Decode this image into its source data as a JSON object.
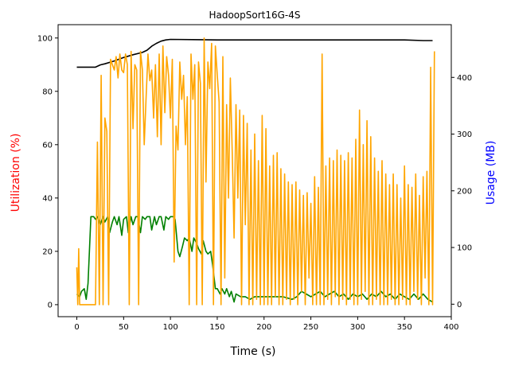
{
  "chart_data": {
    "type": "line",
    "title": "HadoopSort16G-4S",
    "xlabel": "Time (s)",
    "ylabel_left": "Utilization (%)",
    "ylabel_right": "Usage (MB)",
    "colors": {
      "ylabel_left": "#ff0000",
      "ylabel_right": "#0000ff"
    },
    "xlim": [
      -20,
      400
    ],
    "ylim_left": [
      -4.5,
      105
    ],
    "ylim_right": [
      -22,
      493
    ],
    "xticks": [
      "0",
      "50",
      "100",
      "150",
      "200",
      "250",
      "300",
      "350",
      "400"
    ],
    "yticks_left": [
      "0",
      "20",
      "40",
      "60",
      "80",
      "100"
    ],
    "yticks_right": [
      "0",
      "100",
      "200",
      "300",
      "400"
    ],
    "grid": false,
    "series": [
      {
        "axis": "right",
        "color": "#000000",
        "x": [
          0,
          20,
          25,
          30,
          40,
          50,
          60,
          70,
          75,
          80,
          85,
          90,
          95,
          100,
          150,
          200,
          250,
          300,
          350,
          370,
          380
        ],
        "y": [
          418,
          418,
          422,
          424,
          429,
          435,
          440,
          444,
          448,
          455,
          460,
          464,
          466,
          467,
          466,
          466,
          466,
          466,
          466,
          465,
          465
        ]
      },
      {
        "axis": "left",
        "color": "#008000",
        "x": [
          0,
          3,
          5,
          8,
          10,
          12,
          15,
          18,
          20,
          22,
          25,
          28,
          30,
          33,
          35,
          38,
          40,
          43,
          45,
          48,
          50,
          53,
          55,
          58,
          60,
          63,
          65,
          68,
          70,
          73,
          75,
          78,
          80,
          83,
          85,
          88,
          90,
          93,
          95,
          98,
          100,
          103,
          105,
          108,
          110,
          113,
          115,
          118,
          120,
          123,
          125,
          128,
          130,
          133,
          135,
          138,
          140,
          143,
          145,
          148,
          150,
          153,
          155,
          158,
          160,
          163,
          165,
          168,
          170,
          175,
          180,
          185,
          190,
          200,
          210,
          220,
          230,
          235,
          240,
          245,
          250,
          255,
          260,
          265,
          270,
          275,
          280,
          285,
          290,
          295,
          300,
          305,
          310,
          315,
          320,
          325,
          330,
          335,
          340,
          345,
          350,
          355,
          360,
          365,
          370,
          375,
          380
        ],
        "y": [
          4,
          3,
          5,
          6,
          2,
          8,
          33,
          33,
          32,
          33,
          30,
          33,
          31,
          33,
          27,
          31,
          33,
          30,
          33,
          26,
          32,
          33,
          27,
          33,
          30,
          33,
          33,
          27,
          33,
          32,
          33,
          33,
          28,
          33,
          30,
          33,
          33,
          28,
          33,
          32,
          33,
          33,
          32,
          20,
          18,
          22,
          25,
          24,
          25,
          20,
          25,
          23,
          21,
          19,
          24,
          20,
          19,
          20,
          15,
          6,
          6,
          4,
          6,
          4,
          6,
          3,
          5,
          1,
          4,
          3,
          3,
          2,
          3,
          3,
          3,
          3,
          2,
          3,
          5,
          4,
          3,
          4,
          5,
          3,
          4,
          5,
          3,
          4,
          2,
          4,
          3,
          4,
          2,
          4,
          3,
          5,
          3,
          4,
          2,
          4,
          3,
          2,
          4,
          2,
          4,
          2,
          1
        ]
      },
      {
        "axis": "left",
        "color": "#ffa500",
        "x": [
          0,
          1,
          2,
          3,
          5,
          8,
          12,
          16,
          20,
          22,
          24,
          26,
          28,
          30,
          32,
          34,
          36,
          38,
          40,
          42,
          44,
          46,
          48,
          50,
          52,
          54,
          56,
          58,
          60,
          62,
          64,
          66,
          68,
          70,
          72,
          74,
          76,
          78,
          80,
          82,
          84,
          86,
          88,
          90,
          92,
          94,
          96,
          98,
          100,
          102,
          104,
          106,
          108,
          110,
          112,
          114,
          116,
          118,
          120,
          122,
          124,
          126,
          128,
          130,
          132,
          134,
          136,
          138,
          140,
          142,
          144,
          146,
          148,
          150,
          152,
          154,
          156,
          158,
          160,
          162,
          164,
          166,
          168,
          170,
          172,
          174,
          176,
          178,
          180,
          182,
          184,
          186,
          188,
          190,
          192,
          194,
          196,
          198,
          200,
          202,
          204,
          206,
          208,
          210,
          212,
          214,
          216,
          218,
          220,
          222,
          224,
          226,
          228,
          230,
          232,
          234,
          236,
          238,
          240,
          242,
          244,
          246,
          248,
          250,
          252,
          254,
          256,
          258,
          260,
          262,
          264,
          266,
          268,
          270,
          272,
          274,
          276,
          278,
          280,
          282,
          284,
          286,
          288,
          290,
          292,
          294,
          296,
          298,
          300,
          302,
          304,
          306,
          308,
          310,
          312,
          314,
          316,
          318,
          320,
          322,
          324,
          326,
          328,
          330,
          332,
          334,
          336,
          338,
          340,
          342,
          344,
          346,
          348,
          350,
          352,
          354,
          356,
          358,
          360,
          362,
          364,
          366,
          368,
          370,
          372,
          374,
          376,
          378,
          380,
          382
        ],
        "y": [
          14,
          0,
          21,
          0,
          0,
          0,
          0,
          0,
          0,
          61,
          0,
          86,
          0,
          70,
          65,
          0,
          92,
          90,
          88,
          93,
          85,
          94,
          88,
          87,
          94,
          90,
          0,
          95,
          66,
          90,
          88,
          0,
          95,
          88,
          60,
          78,
          94,
          84,
          88,
          70,
          90,
          63,
          94,
          60,
          97,
          72,
          93,
          86,
          70,
          92,
          16,
          67,
          58,
          91,
          77,
          86,
          60,
          78,
          0,
          94,
          77,
          90,
          0,
          91,
          83,
          0,
          100,
          46,
          91,
          81,
          98,
          0,
          97,
          86,
          76,
          0,
          93,
          10,
          75,
          40,
          85,
          57,
          25,
          75,
          40,
          73,
          0,
          71,
          30,
          68,
          0,
          58,
          0,
          64,
          2,
          54,
          0,
          71,
          0,
          66,
          0,
          52,
          0,
          56,
          3,
          57,
          0,
          51,
          0,
          49,
          2,
          46,
          0,
          45,
          2,
          46,
          0,
          43,
          5,
          41,
          0,
          42,
          10,
          38,
          0,
          48,
          0,
          44,
          0,
          94,
          0,
          52,
          2,
          55,
          0,
          54,
          3,
          58,
          0,
          56,
          2,
          54,
          0,
          57,
          2,
          55,
          0,
          62,
          0,
          73,
          2,
          60,
          5,
          69,
          0,
          63,
          0,
          55,
          2,
          50,
          0,
          54,
          0,
          49,
          0,
          45,
          2,
          49,
          0,
          45,
          0,
          40,
          2,
          52,
          0,
          45,
          0,
          44,
          5,
          49,
          2,
          41,
          0,
          48,
          10,
          50,
          0,
          89,
          0,
          95
        ]
      }
    ]
  }
}
